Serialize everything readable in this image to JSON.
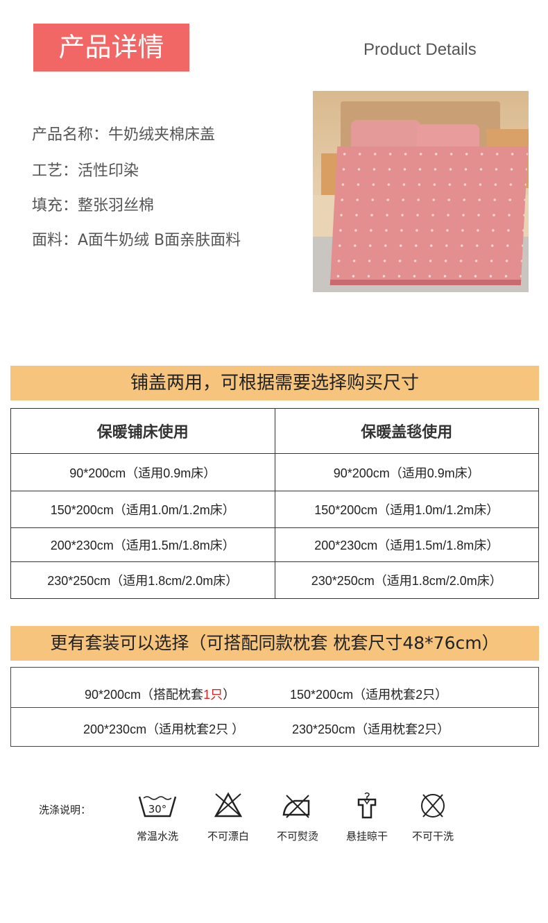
{
  "header": {
    "title_cn": "产品详情",
    "title_en": "Product Details"
  },
  "specs": [
    "产品名称：牛奶绒夹棉床盖",
    "工艺：活性印染",
    "填充：整张羽丝棉",
    "面料：A面牛奶绒 B面亲肤面料"
  ],
  "colors": {
    "title_bg": "#f06766",
    "bar_bg": "#f6c47d",
    "highlight": "#e02020"
  },
  "sizes": {
    "banner": "铺盖两用，可根据需要选择购买尺寸",
    "headers": [
      "保暖铺床使用",
      "保暖盖毯使用"
    ],
    "rows": [
      [
        "90*200cm（适用0.9m床）",
        "90*200cm（适用0.9m床）"
      ],
      [
        "150*200cm（适用1.0m/1.2m床）",
        "150*200cm（适用1.0m/1.2m床）"
      ],
      [
        "200*230cm（适用1.5m/1.8m床）",
        "200*230cm（适用1.5m/1.8m床）"
      ],
      [
        "230*250cm（适用1.8cm/2.0m床）",
        "230*250cm（适用1.8cm/2.0m床）"
      ]
    ]
  },
  "sets": {
    "banner": "更有套装可以选择（可搭配同款枕套 枕套尺寸48*76cm）",
    "r1c1_pre": "90*200cm（搭配枕套",
    "r1c1_red": "1只",
    "r1c1_post": "）",
    "r1c2": "150*200cm（适用枕套2只）",
    "r2c1": "200*230cm（适用枕套2只 ）",
    "r2c2": "230*250cm（适用枕套2只）"
  },
  "care": {
    "label": "洗涤说明：",
    "items": [
      {
        "icon": "wash-30-icon",
        "label": "常温水洗",
        "temp": "30°"
      },
      {
        "icon": "no-bleach-icon",
        "label": "不可漂白"
      },
      {
        "icon": "no-iron-icon",
        "label": "不可熨烫"
      },
      {
        "icon": "hang-dry-icon",
        "label": "悬挂晾干"
      },
      {
        "icon": "no-dry-clean-icon",
        "label": "不可干洗"
      }
    ]
  }
}
